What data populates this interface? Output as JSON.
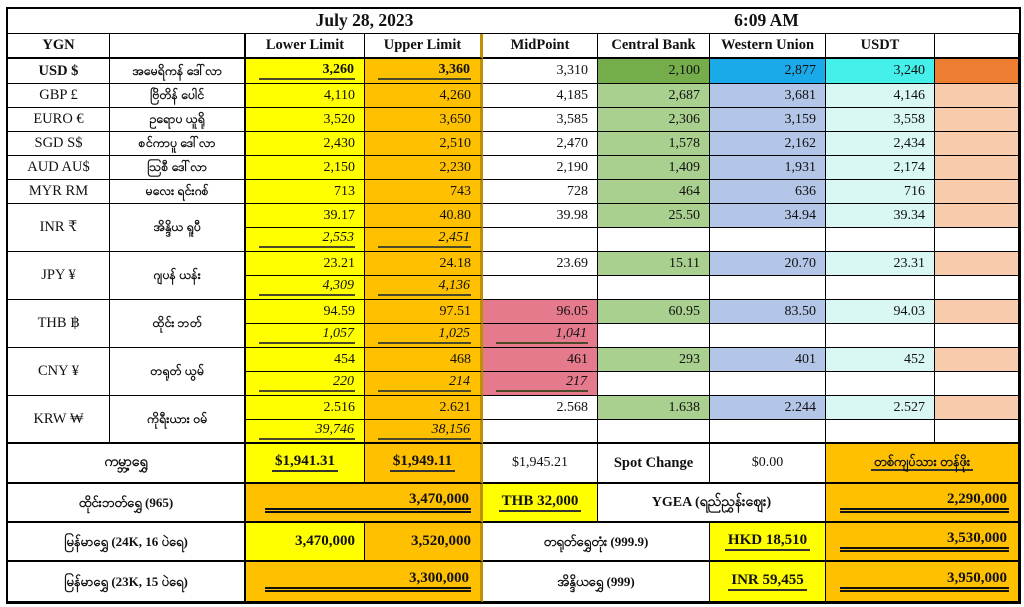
{
  "title": {
    "date": "July 28, 2023",
    "time": "6:09 AM"
  },
  "header": {
    "city": "YGN",
    "columns": [
      "Lower Limit",
      "Upper Limit",
      "MidPoint",
      "Central Bank",
      "Western Union",
      "USDT"
    ]
  },
  "colors": {
    "yellow": "#FFFF00",
    "orange": "#FFC000",
    "green": "#76AD4B",
    "light-green": "#A9D08E",
    "blue": "#1BAAE9",
    "light-blue": "#B4C6E7",
    "cyan": "#45EFEA",
    "light-cyan": "#D9F7F3",
    "deep-orange": "#ED7D31",
    "light-orange": "#F8CBAD",
    "pink": "#E57A8D",
    "gold-line": "#BF9000"
  },
  "rates": {
    "rows": [
      {
        "code": "USD $",
        "name": "အမေရိကန် ဒေါ်လာ",
        "lower": "3,260",
        "upper": "3,360",
        "mid": "3,310",
        "cb": "2,100",
        "wu": "2,877",
        "usdt": "3,240"
      },
      {
        "code": "GBP £",
        "name": "ဗြိတိန် ပေါင်",
        "lower": "4,110",
        "upper": "4,260",
        "mid": "4,185",
        "cb": "2,687",
        "wu": "3,681",
        "usdt": "4,146"
      },
      {
        "code": "EURO €",
        "name": "ဥရောပ ယူရို",
        "lower": "3,520",
        "upper": "3,650",
        "mid": "3,585",
        "cb": "2,306",
        "wu": "3,159",
        "usdt": "3,558"
      },
      {
        "code": "SGD S$",
        "name": "စင်ကာပူ ဒေါ်လာ",
        "lower": "2,430",
        "upper": "2,510",
        "mid": "2,470",
        "cb": "1,578",
        "wu": "2,162",
        "usdt": "2,434"
      },
      {
        "code": "AUD AU$",
        "name": "သြစီ ဒေါ်လာ",
        "lower": "2,150",
        "upper": "2,230",
        "mid": "2,190",
        "cb": "1,409",
        "wu": "1,931",
        "usdt": "2,174"
      },
      {
        "code": "MYR RM",
        "name": "မလေး ရင်းဂစ်",
        "lower": "713",
        "upper": "743",
        "mid": "728",
        "cb": "464",
        "wu": "636",
        "usdt": "716"
      },
      {
        "code": "INR ₹",
        "name": "အိန္ဒိယ ရူပီ",
        "lower": "39.17",
        "lower_alt": "2,553",
        "upper": "40.80",
        "upper_alt": "2,451",
        "mid": "39.98",
        "mid_alt": "",
        "cb": "25.50",
        "wu": "34.94",
        "usdt": "39.34"
      },
      {
        "code": "JPY ¥",
        "name": "ဂျပန် ယန်း",
        "lower": "23.21",
        "lower_alt": "4,309",
        "upper": "24.18",
        "upper_alt": "4,136",
        "mid": "23.69",
        "mid_alt": "",
        "cb": "15.11",
        "wu": "20.70",
        "usdt": "23.31"
      },
      {
        "code": "THB ฿",
        "name": "ထိုင်း ဘတ်",
        "lower": "94.59",
        "lower_alt": "1,057",
        "upper": "97.51",
        "upper_alt": "1,025",
        "mid": "96.05",
        "mid_alt": "1,041",
        "cb": "60.95",
        "wu": "83.50",
        "usdt": "94.03"
      },
      {
        "code": "CNY ¥",
        "name": "တရုတ် ယွမ်",
        "lower": "454",
        "lower_alt": "220",
        "upper": "468",
        "upper_alt": "214",
        "mid": "461",
        "mid_alt": "217",
        "cb": "293",
        "wu": "401",
        "usdt": "452"
      },
      {
        "code": "KRW ₩",
        "name": "ကိုရီးယား ဝမ်",
        "lower": "2.516",
        "lower_alt": "39,746",
        "upper": "2.621",
        "upper_alt": "38,156",
        "mid": "2.568",
        "mid_alt": "",
        "cb": "1.638",
        "wu": "2.244",
        "usdt": "2.527"
      }
    ]
  },
  "gold": {
    "world": {
      "label": "ကမ္ဘာ့ရွှေ",
      "lower": "$1,941.31",
      "upper": "$1,949.11",
      "mid": "$1,945.21",
      "spot_label": "Spot Change",
      "spot_value": "$0.00",
      "unit_label": "တစ်ကျပ်သား တန်ဖိုး"
    },
    "thai": {
      "label": "ထိုင်းဘတ်ရွှေ (965)",
      "value": "3,470,000",
      "thb": "THB 32,000",
      "ygea_label": "YGEA (ရည်ညွှန်းဈေး)",
      "kyat_value": "2,290,000"
    },
    "mm24": {
      "label": "မြန်မာရွှေ (24K, 16 ပဲရေ)",
      "lower": "3,470,000",
      "upper": "3,520,000",
      "china_label": "တရုတ်ရွှေတုံး (999.9)",
      "hkd": "HKD 18,510",
      "kyat_value": "3,530,000"
    },
    "mm23": {
      "label": "မြန်မာရွှေ (23K, 15 ပဲရေ)",
      "value": "3,300,000",
      "india_label": "အိန္ဒိယရွှေ (999)",
      "inr": "INR 59,455",
      "kyat_value": "3,950,000"
    }
  }
}
